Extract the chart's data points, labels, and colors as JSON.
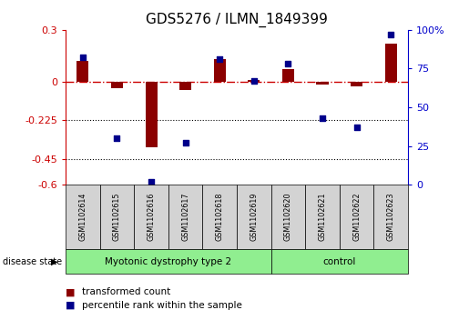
{
  "title": "GDS5276 / ILMN_1849399",
  "categories": [
    "GSM1102614",
    "GSM1102615",
    "GSM1102616",
    "GSM1102617",
    "GSM1102618",
    "GSM1102619",
    "GSM1102620",
    "GSM1102621",
    "GSM1102622",
    "GSM1102623"
  ],
  "red_values": [
    0.12,
    -0.04,
    -0.38,
    -0.05,
    0.13,
    0.01,
    0.07,
    -0.02,
    -0.03,
    0.22
  ],
  "blue_values": [
    82,
    30,
    2,
    27,
    81,
    67,
    78,
    43,
    37,
    97
  ],
  "groups_info": [
    {
      "start": 0,
      "end": 6,
      "label": "Myotonic dystrophy type 2",
      "color": "#90EE90"
    },
    {
      "start": 6,
      "end": 10,
      "label": "control",
      "color": "#90EE90"
    }
  ],
  "disease_state_label": "disease state",
  "ylim_left": [
    -0.6,
    0.3
  ],
  "ylim_right": [
    0,
    100
  ],
  "yticks_left": [
    -0.6,
    -0.45,
    -0.225,
    0.0,
    0.3
  ],
  "yticks_left_labels": [
    "-0.6",
    "-0.45",
    "-0.225",
    "0",
    "0.3"
  ],
  "yticks_right": [
    0,
    25,
    50,
    75,
    100
  ],
  "yticks_right_labels": [
    "0",
    "25",
    "50",
    "75",
    "100%"
  ],
  "hlines": [
    -0.225,
    -0.45
  ],
  "zero_line": 0.0,
  "left_axis_color": "#cc0000",
  "right_axis_color": "#0000cc",
  "bar_color": "#8B0000",
  "dot_color": "#00008B",
  "dot_size": 18,
  "bar_width": 0.35,
  "legend_red_label": "transformed count",
  "legend_blue_label": "percentile rank within the sample",
  "sample_box_color": "#d3d3d3",
  "background_color": "#ffffff"
}
